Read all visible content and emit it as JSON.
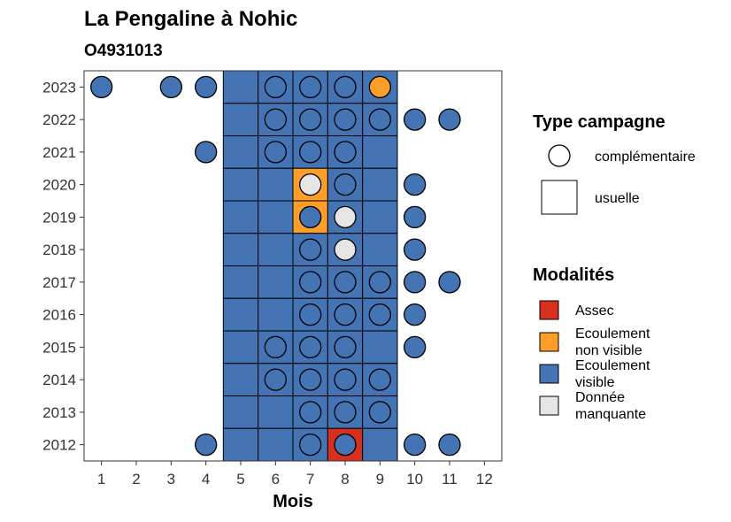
{
  "chart_data": {
    "type": "heatmap",
    "title": "La Pengaline à Nohic",
    "subtitle": "O4931013",
    "xlabel": "Mois",
    "ylabel": "",
    "x_ticks": [
      1,
      2,
      3,
      4,
      5,
      6,
      7,
      8,
      9,
      10,
      11,
      12
    ],
    "y_ticks": [
      2012,
      2013,
      2014,
      2015,
      2016,
      2017,
      2018,
      2019,
      2020,
      2021,
      2022,
      2023
    ],
    "xlim": [
      0.5,
      12.5
    ],
    "ylim": [
      2011.5,
      2023.5
    ],
    "grid": false,
    "colors": {
      "Assec": "#d7301f",
      "Ecoulement non visible": "#fd9d2a",
      "Ecoulement visible": "#4574b5",
      "Donnée manquante": "#e5e5e5"
    },
    "usuelle": [
      {
        "year": 2023,
        "month": 5,
        "modalite": "Ecoulement visible"
      },
      {
        "year": 2023,
        "month": 6,
        "modalite": "Ecoulement visible"
      },
      {
        "year": 2023,
        "month": 7,
        "modalite": "Ecoulement visible"
      },
      {
        "year": 2023,
        "month": 8,
        "modalite": "Ecoulement visible"
      },
      {
        "year": 2023,
        "month": 9,
        "modalite": "Ecoulement visible"
      },
      {
        "year": 2022,
        "month": 5,
        "modalite": "Ecoulement visible"
      },
      {
        "year": 2022,
        "month": 6,
        "modalite": "Ecoulement visible"
      },
      {
        "year": 2022,
        "month": 7,
        "modalite": "Ecoulement visible"
      },
      {
        "year": 2022,
        "month": 8,
        "modalite": "Ecoulement visible"
      },
      {
        "year": 2022,
        "month": 9,
        "modalite": "Ecoulement visible"
      },
      {
        "year": 2021,
        "month": 5,
        "modalite": "Ecoulement visible"
      },
      {
        "year": 2021,
        "month": 6,
        "modalite": "Ecoulement visible"
      },
      {
        "year": 2021,
        "month": 7,
        "modalite": "Ecoulement visible"
      },
      {
        "year": 2021,
        "month": 8,
        "modalite": "Ecoulement visible"
      },
      {
        "year": 2021,
        "month": 9,
        "modalite": "Ecoulement visible"
      },
      {
        "year": 2020,
        "month": 5,
        "modalite": "Ecoulement visible"
      },
      {
        "year": 2020,
        "month": 6,
        "modalite": "Ecoulement visible"
      },
      {
        "year": 2020,
        "month": 7,
        "modalite": "Ecoulement non visible"
      },
      {
        "year": 2020,
        "month": 8,
        "modalite": "Ecoulement visible"
      },
      {
        "year": 2020,
        "month": 9,
        "modalite": "Ecoulement visible"
      },
      {
        "year": 2019,
        "month": 5,
        "modalite": "Ecoulement visible"
      },
      {
        "year": 2019,
        "month": 6,
        "modalite": "Ecoulement visible"
      },
      {
        "year": 2019,
        "month": 7,
        "modalite": "Ecoulement non visible"
      },
      {
        "year": 2019,
        "month": 8,
        "modalite": "Ecoulement visible"
      },
      {
        "year": 2019,
        "month": 9,
        "modalite": "Ecoulement visible"
      },
      {
        "year": 2018,
        "month": 5,
        "modalite": "Ecoulement visible"
      },
      {
        "year": 2018,
        "month": 6,
        "modalite": "Ecoulement visible"
      },
      {
        "year": 2018,
        "month": 7,
        "modalite": "Ecoulement visible"
      },
      {
        "year": 2018,
        "month": 8,
        "modalite": "Ecoulement visible"
      },
      {
        "year": 2018,
        "month": 9,
        "modalite": "Ecoulement visible"
      },
      {
        "year": 2017,
        "month": 5,
        "modalite": "Ecoulement visible"
      },
      {
        "year": 2017,
        "month": 6,
        "modalite": "Ecoulement visible"
      },
      {
        "year": 2017,
        "month": 7,
        "modalite": "Ecoulement visible"
      },
      {
        "year": 2017,
        "month": 8,
        "modalite": "Ecoulement visible"
      },
      {
        "year": 2017,
        "month": 9,
        "modalite": "Ecoulement visible"
      },
      {
        "year": 2016,
        "month": 5,
        "modalite": "Ecoulement visible"
      },
      {
        "year": 2016,
        "month": 6,
        "modalite": "Ecoulement visible"
      },
      {
        "year": 2016,
        "month": 7,
        "modalite": "Ecoulement visible"
      },
      {
        "year": 2016,
        "month": 8,
        "modalite": "Ecoulement visible"
      },
      {
        "year": 2016,
        "month": 9,
        "modalite": "Ecoulement visible"
      },
      {
        "year": 2015,
        "month": 5,
        "modalite": "Ecoulement visible"
      },
      {
        "year": 2015,
        "month": 6,
        "modalite": "Ecoulement visible"
      },
      {
        "year": 2015,
        "month": 7,
        "modalite": "Ecoulement visible"
      },
      {
        "year": 2015,
        "month": 8,
        "modalite": "Ecoulement visible"
      },
      {
        "year": 2015,
        "month": 9,
        "modalite": "Ecoulement visible"
      },
      {
        "year": 2014,
        "month": 5,
        "modalite": "Ecoulement visible"
      },
      {
        "year": 2014,
        "month": 6,
        "modalite": "Ecoulement visible"
      },
      {
        "year": 2014,
        "month": 7,
        "modalite": "Ecoulement visible"
      },
      {
        "year": 2014,
        "month": 8,
        "modalite": "Ecoulement visible"
      },
      {
        "year": 2014,
        "month": 9,
        "modalite": "Ecoulement visible"
      },
      {
        "year": 2013,
        "month": 5,
        "modalite": "Ecoulement visible"
      },
      {
        "year": 2013,
        "month": 6,
        "modalite": "Ecoulement visible"
      },
      {
        "year": 2013,
        "month": 7,
        "modalite": "Ecoulement visible"
      },
      {
        "year": 2013,
        "month": 8,
        "modalite": "Ecoulement visible"
      },
      {
        "year": 2013,
        "month": 9,
        "modalite": "Ecoulement visible"
      },
      {
        "year": 2012,
        "month": 5,
        "modalite": "Ecoulement visible"
      },
      {
        "year": 2012,
        "month": 6,
        "modalite": "Ecoulement visible"
      },
      {
        "year": 2012,
        "month": 7,
        "modalite": "Ecoulement visible"
      },
      {
        "year": 2012,
        "month": 8,
        "modalite": "Assec"
      },
      {
        "year": 2012,
        "month": 9,
        "modalite": "Ecoulement visible"
      }
    ],
    "complementaire": [
      {
        "year": 2023,
        "month": 1,
        "modalite": "Ecoulement visible"
      },
      {
        "year": 2023,
        "month": 3,
        "modalite": "Ecoulement visible"
      },
      {
        "year": 2023,
        "month": 4,
        "modalite": "Ecoulement visible"
      },
      {
        "year": 2023,
        "month": 6,
        "modalite": "Ecoulement visible"
      },
      {
        "year": 2023,
        "month": 7,
        "modalite": "Ecoulement visible"
      },
      {
        "year": 2023,
        "month": 8,
        "modalite": "Ecoulement visible"
      },
      {
        "year": 2023,
        "month": 9,
        "modalite": "Ecoulement non visible"
      },
      {
        "year": 2022,
        "month": 6,
        "modalite": "Ecoulement visible"
      },
      {
        "year": 2022,
        "month": 7,
        "modalite": "Ecoulement visible"
      },
      {
        "year": 2022,
        "month": 8,
        "modalite": "Ecoulement visible"
      },
      {
        "year": 2022,
        "month": 9,
        "modalite": "Ecoulement visible"
      },
      {
        "year": 2022,
        "month": 10,
        "modalite": "Ecoulement visible"
      },
      {
        "year": 2022,
        "month": 11,
        "modalite": "Ecoulement visible"
      },
      {
        "year": 2021,
        "month": 4,
        "modalite": "Ecoulement visible"
      },
      {
        "year": 2021,
        "month": 6,
        "modalite": "Ecoulement visible"
      },
      {
        "year": 2021,
        "month": 7,
        "modalite": "Ecoulement visible"
      },
      {
        "year": 2021,
        "month": 8,
        "modalite": "Ecoulement visible"
      },
      {
        "year": 2020,
        "month": 7,
        "modalite": "Donnée manquante"
      },
      {
        "year": 2020,
        "month": 8,
        "modalite": "Ecoulement visible"
      },
      {
        "year": 2020,
        "month": 10,
        "modalite": "Ecoulement visible"
      },
      {
        "year": 2019,
        "month": 7,
        "modalite": "Ecoulement visible"
      },
      {
        "year": 2019,
        "month": 8,
        "modalite": "Donnée manquante"
      },
      {
        "year": 2019,
        "month": 10,
        "modalite": "Ecoulement visible"
      },
      {
        "year": 2018,
        "month": 7,
        "modalite": "Ecoulement visible"
      },
      {
        "year": 2018,
        "month": 8,
        "modalite": "Donnée manquante"
      },
      {
        "year": 2018,
        "month": 10,
        "modalite": "Ecoulement visible"
      },
      {
        "year": 2017,
        "month": 7,
        "modalite": "Ecoulement visible"
      },
      {
        "year": 2017,
        "month": 8,
        "modalite": "Ecoulement visible"
      },
      {
        "year": 2017,
        "month": 9,
        "modalite": "Ecoulement visible"
      },
      {
        "year": 2017,
        "month": 10,
        "modalite": "Ecoulement visible"
      },
      {
        "year": 2017,
        "month": 11,
        "modalite": "Ecoulement visible"
      },
      {
        "year": 2016,
        "month": 7,
        "modalite": "Ecoulement visible"
      },
      {
        "year": 2016,
        "month": 8,
        "modalite": "Ecoulement visible"
      },
      {
        "year": 2016,
        "month": 9,
        "modalite": "Ecoulement visible"
      },
      {
        "year": 2016,
        "month": 10,
        "modalite": "Ecoulement visible"
      },
      {
        "year": 2015,
        "month": 6,
        "modalite": "Ecoulement visible"
      },
      {
        "year": 2015,
        "month": 7,
        "modalite": "Ecoulement visible"
      },
      {
        "year": 2015,
        "month": 8,
        "modalite": "Ecoulement visible"
      },
      {
        "year": 2015,
        "month": 10,
        "modalite": "Ecoulement visible"
      },
      {
        "year": 2014,
        "month": 6,
        "modalite": "Ecoulement visible"
      },
      {
        "year": 2014,
        "month": 7,
        "modalite": "Ecoulement visible"
      },
      {
        "year": 2014,
        "month": 8,
        "modalite": "Ecoulement visible"
      },
      {
        "year": 2014,
        "month": 9,
        "modalite": "Ecoulement visible"
      },
      {
        "year": 2013,
        "month": 7,
        "modalite": "Ecoulement visible"
      },
      {
        "year": 2013,
        "month": 8,
        "modalite": "Ecoulement visible"
      },
      {
        "year": 2013,
        "month": 9,
        "modalite": "Ecoulement visible"
      },
      {
        "year": 2012,
        "month": 4,
        "modalite": "Ecoulement visible"
      },
      {
        "year": 2012,
        "month": 7,
        "modalite": "Ecoulement visible"
      },
      {
        "year": 2012,
        "month": 8,
        "modalite": "Ecoulement visible"
      },
      {
        "year": 2012,
        "month": 10,
        "modalite": "Ecoulement visible"
      },
      {
        "year": 2012,
        "month": 11,
        "modalite": "Ecoulement visible"
      }
    ],
    "legend_placement": "right",
    "legend_type": {
      "title": "Type campagne",
      "items": [
        "complémentaire",
        "usuelle"
      ]
    },
    "legend_modalites": {
      "title": "Modalités",
      "items": [
        {
          "key": "Assec",
          "lines": [
            "Assec"
          ]
        },
        {
          "key": "Ecoulement non visible",
          "lines": [
            "Ecoulement",
            "non visible"
          ]
        },
        {
          "key": "Ecoulement visible",
          "lines": [
            "Ecoulement",
            "visible"
          ]
        },
        {
          "key": "Donnée manquante",
          "lines": [
            "Donnée",
            "manquante"
          ]
        }
      ]
    }
  }
}
